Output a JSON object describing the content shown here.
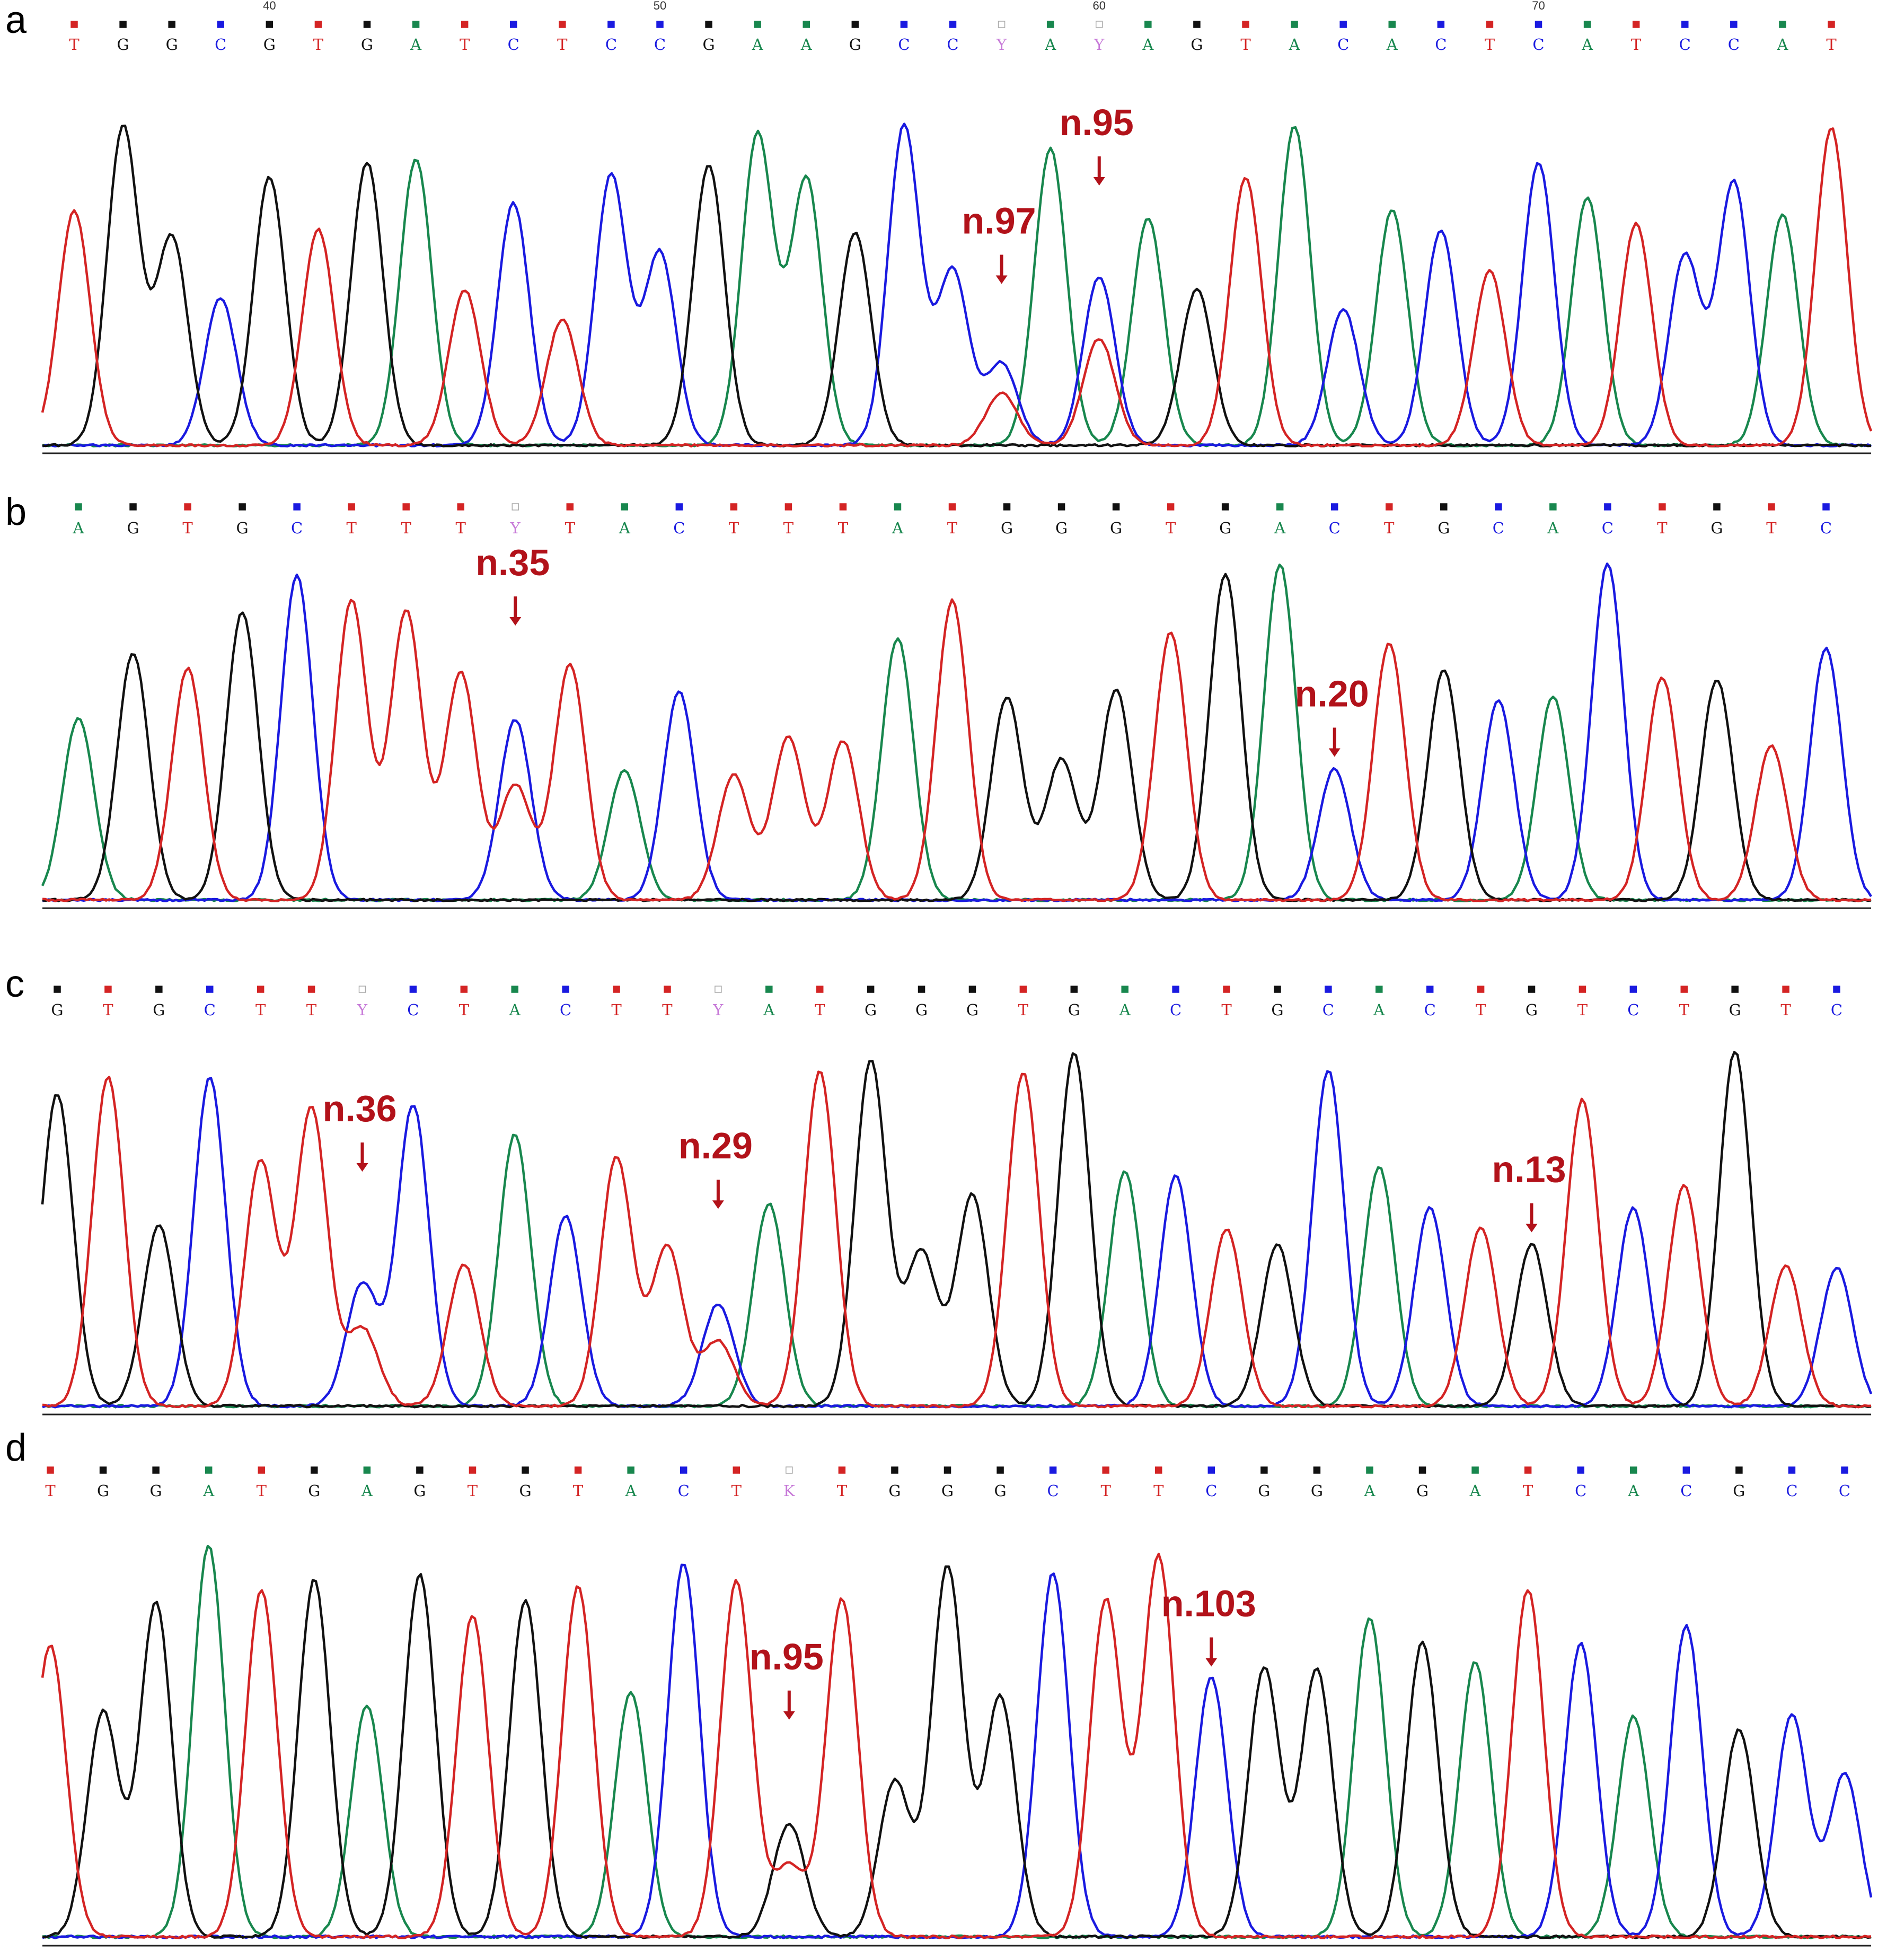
{
  "colors": {
    "A": "#18874e",
    "C": "#1a1ae0",
    "G": "#111111",
    "T": "#d42424",
    "ambig": "#c77ad8",
    "arrow": "#b2121a"
  },
  "panels": [
    {
      "letter": "a",
      "bases": [
        "T",
        "G",
        "G",
        "C",
        "G",
        "T",
        "G",
        "A",
        "T",
        "C",
        "T",
        "C",
        "C",
        "G",
        "A",
        "A",
        "G",
        "C",
        "C",
        "Y",
        "A",
        "Y",
        "A",
        "G",
        "T",
        "A",
        "C",
        "A",
        "C",
        "T",
        "C",
        "A",
        "T",
        "C",
        "C",
        "A",
        "T"
      ],
      "position_marks": [
        "40",
        "50",
        "60",
        "70"
      ],
      "annotations": [
        {
          "label": "n.97",
          "base_index": 19
        },
        {
          "label": "n.95",
          "base_index": 21
        }
      ]
    },
    {
      "letter": "b",
      "bases": [
        "A",
        "G",
        "T",
        "G",
        "C",
        "T",
        "T",
        "T",
        "Y",
        "T",
        "A",
        "C",
        "T",
        "T",
        "T",
        "A",
        "T",
        "G",
        "G",
        "G",
        "T",
        "G",
        "A",
        "C",
        "T",
        "G",
        "C",
        "A",
        "C",
        "T",
        "G",
        "T",
        "C"
      ],
      "position_marks": [],
      "annotations": [
        {
          "label": "n.35",
          "base_index": 8
        },
        {
          "label": "n.20",
          "base_index": 23
        }
      ]
    },
    {
      "letter": "c",
      "bases": [
        "G",
        "T",
        "G",
        "C",
        "T",
        "T",
        "Y",
        "C",
        "T",
        "A",
        "C",
        "T",
        "T",
        "Y",
        "A",
        "T",
        "G",
        "G",
        "G",
        "T",
        "G",
        "A",
        "C",
        "T",
        "G",
        "C",
        "A",
        "C",
        "T",
        "G",
        "T",
        "C",
        "T",
        "G",
        "T",
        "C"
      ],
      "position_marks": [],
      "annotations": [
        {
          "label": "n.36",
          "base_index": 6
        },
        {
          "label": "n.29",
          "base_index": 13
        },
        {
          "label": "n.13",
          "base_index": 29
        }
      ]
    },
    {
      "letter": "d",
      "bases": [
        "T",
        "G",
        "G",
        "A",
        "T",
        "G",
        "A",
        "G",
        "T",
        "G",
        "T",
        "A",
        "C",
        "T",
        "K",
        "T",
        "G",
        "G",
        "G",
        "C",
        "T",
        "T",
        "C",
        "G",
        "G",
        "A",
        "G",
        "A",
        "T",
        "C",
        "A",
        "C",
        "G",
        "C",
        "C"
      ],
      "position_marks": [],
      "annotations": [
        {
          "label": "n.95",
          "base_index": 14
        },
        {
          "label": "n.103",
          "base_index": 22
        }
      ]
    }
  ]
}
